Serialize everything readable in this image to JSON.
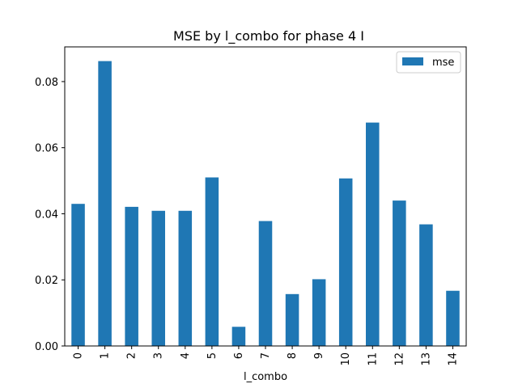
{
  "chart_data": {
    "type": "bar",
    "title": "MSE by l_combo for phase 4 I",
    "xlabel": "l_combo",
    "ylabel": "",
    "categories": [
      "0",
      "1",
      "2",
      "3",
      "4",
      "5",
      "6",
      "7",
      "8",
      "9",
      "10",
      "11",
      "12",
      "13",
      "14"
    ],
    "series": [
      {
        "name": "mse",
        "color": "#1f77b4",
        "values": [
          0.043,
          0.0862,
          0.0421,
          0.0409,
          0.0409,
          0.051,
          0.0058,
          0.0378,
          0.0157,
          0.0202,
          0.0507,
          0.0676,
          0.044,
          0.0368,
          0.0167
        ]
      }
    ],
    "ylim": [
      0,
      0.0905
    ],
    "yticks": [
      0.0,
      0.02,
      0.04,
      0.06,
      0.08
    ],
    "ytick_labels": [
      "0.00",
      "0.02",
      "0.04",
      "0.06",
      "0.08"
    ],
    "grid": false,
    "legend_position": "top-right"
  }
}
